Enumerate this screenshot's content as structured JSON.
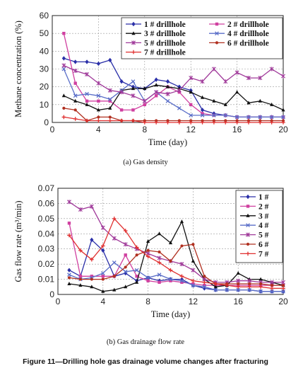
{
  "chart_data": [
    {
      "type": "line",
      "xlabel": "Time (day)",
      "ylabel": "Methane concentration (%)",
      "xlim": [
        0,
        20
      ],
      "ylim": [
        0,
        60
      ],
      "xticks": [
        0,
        4,
        8,
        12,
        16,
        20
      ],
      "yticks": [
        0,
        10,
        20,
        30,
        40,
        50,
        60
      ],
      "grid": "dashed",
      "legend": "top-right",
      "caption": "(a) Gas density",
      "series": [
        {
          "name": "1 # drillhole",
          "color": "#2a2fa8",
          "marker": "diamond",
          "x": [
            1,
            2,
            3,
            4,
            5,
            6,
            7,
            8,
            9,
            10,
            11,
            12,
            13,
            14,
            15,
            16,
            17,
            18,
            19,
            20
          ],
          "y": [
            36,
            34,
            34,
            33,
            35,
            23,
            20,
            19,
            24,
            23,
            20,
            18,
            7,
            5,
            4,
            3,
            3,
            3,
            3,
            3
          ]
        },
        {
          "name": "2 # drillhole",
          "color": "#d040a0",
          "marker": "square",
          "x": [
            1,
            2,
            3,
            4,
            5,
            6,
            7,
            8,
            9,
            10,
            11,
            12,
            13,
            14,
            15,
            16,
            17,
            18,
            19,
            20
          ],
          "y": [
            50,
            22,
            12,
            12,
            12,
            7,
            7,
            10,
            15,
            20,
            17,
            10,
            5,
            4,
            4,
            3,
            3,
            3,
            3,
            3
          ]
        },
        {
          "name": "3 # drillhole",
          "color": "#111111",
          "marker": "triangle",
          "x": [
            1,
            2,
            3,
            4,
            5,
            6,
            7,
            8,
            9,
            10,
            11,
            12,
            13,
            14,
            15,
            16,
            17,
            18,
            19,
            20
          ],
          "y": [
            15,
            12,
            10,
            7,
            8,
            18,
            19,
            19,
            21,
            20,
            19,
            17,
            14,
            12,
            10,
            17,
            11,
            12,
            10,
            7
          ]
        },
        {
          "name": "4 # drillhole",
          "color": "#5a6ec8",
          "marker": "x",
          "x": [
            1,
            2,
            3,
            4,
            5,
            6,
            7,
            8,
            9,
            10,
            11,
            12,
            13,
            14,
            15,
            16,
            17,
            18,
            19,
            20
          ],
          "y": [
            30,
            15,
            16,
            15,
            13,
            18,
            23,
            12,
            17,
            12,
            8,
            4,
            4,
            4,
            4,
            3,
            3,
            3,
            3,
            3
          ]
        },
        {
          "name": "5 # drillhole",
          "color": "#a03a9a",
          "marker": "star",
          "x": [
            1,
            2,
            3,
            4,
            5,
            6,
            7,
            8,
            9,
            10,
            11,
            12,
            13,
            14,
            15,
            16,
            17,
            18,
            19,
            20
          ],
          "y": [
            32,
            29,
            27,
            22,
            18,
            17,
            15,
            12,
            17,
            16,
            18,
            25,
            23,
            30,
            23,
            28,
            25,
            25,
            30,
            26
          ]
        },
        {
          "name": "6 # drillhole",
          "color": "#b03020",
          "marker": "dot",
          "x": [
            1,
            2,
            3,
            4,
            5,
            6,
            7,
            8,
            9,
            10,
            11,
            12,
            13,
            14,
            15,
            16,
            17,
            18,
            19,
            20
          ],
          "y": [
            8,
            7,
            1,
            3,
            3,
            1,
            1,
            1,
            1,
            1,
            1,
            1,
            1,
            1,
            1,
            1,
            1,
            1,
            1,
            1
          ]
        },
        {
          "name": "7 # drillhole",
          "color": "#e03030",
          "marker": "plus",
          "x": [
            1,
            2,
            3,
            4,
            5,
            6,
            7,
            8,
            9,
            10,
            11,
            12,
            13,
            14,
            15,
            16,
            17,
            18,
            19,
            20
          ],
          "y": [
            3,
            2,
            1,
            1,
            1,
            1,
            1,
            0,
            0,
            0,
            0,
            0,
            0,
            0,
            0,
            0,
            0,
            0,
            0,
            0
          ]
        }
      ]
    },
    {
      "type": "line",
      "xlabel": "Time (day)",
      "ylabel": "Gas flow rate (m³/min)",
      "xlim": [
        0,
        20
      ],
      "ylim": [
        0,
        0.07
      ],
      "xticks": [
        0,
        4,
        8,
        12,
        16,
        20
      ],
      "yticks": [
        0,
        0.01,
        0.02,
        0.03,
        0.04,
        0.05,
        0.06,
        0.07
      ],
      "grid": "dashed",
      "legend": "top-right",
      "caption": "(b) Gas drainage flow rate",
      "series": [
        {
          "name": "1 #",
          "color": "#2a2fa8",
          "marker": "diamond",
          "x": [
            1,
            2,
            3,
            4,
            5,
            6,
            7,
            8,
            9,
            10,
            11,
            12,
            13,
            14,
            15,
            16,
            17,
            18,
            19,
            20
          ],
          "y": [
            0.016,
            0.012,
            0.036,
            0.029,
            0.012,
            0.014,
            0.009,
            0.011,
            0.009,
            0.01,
            0.01,
            0.006,
            0.004,
            0.003,
            0.003,
            0.003,
            0.003,
            0.002,
            0.002,
            0.002
          ]
        },
        {
          "name": "2 #",
          "color": "#d040a0",
          "marker": "square",
          "x": [
            1,
            2,
            3,
            4,
            5,
            6,
            7,
            8,
            9,
            10,
            11,
            12,
            13,
            14,
            15,
            16,
            17,
            18,
            19,
            20
          ],
          "y": [
            0.047,
            0.012,
            0.012,
            0.012,
            0.012,
            0.026,
            0.012,
            0.009,
            0.008,
            0.009,
            0.008,
            0.007,
            0.006,
            0.006,
            0.006,
            0.006,
            0.006,
            0.006,
            0.006,
            0.006
          ]
        },
        {
          "name": "3 #",
          "color": "#111111",
          "marker": "triangle",
          "x": [
            1,
            2,
            3,
            4,
            5,
            6,
            7,
            8,
            9,
            10,
            11,
            12,
            13,
            14,
            15,
            16,
            17,
            18,
            19,
            20
          ],
          "y": [
            0.007,
            0.006,
            0.005,
            0.002,
            0.003,
            0.005,
            0.008,
            0.035,
            0.04,
            0.034,
            0.048,
            0.022,
            0.01,
            0.005,
            0.006,
            0.014,
            0.01,
            0.01,
            0.008,
            0.006
          ]
        },
        {
          "name": "4 #",
          "color": "#5a6ec8",
          "marker": "x",
          "x": [
            1,
            2,
            3,
            4,
            5,
            6,
            7,
            8,
            9,
            10,
            11,
            12,
            13,
            14,
            15,
            16,
            17,
            18,
            19,
            20
          ],
          "y": [
            0.013,
            0.01,
            0.011,
            0.014,
            0.021,
            0.015,
            0.016,
            0.011,
            0.013,
            0.01,
            0.009,
            0.006,
            0.005,
            0.003,
            0.003,
            0.003,
            0.003,
            0.002,
            0.002,
            0.002
          ]
        },
        {
          "name": "5 #",
          "color": "#a03a9a",
          "marker": "star",
          "x": [
            1,
            2,
            3,
            4,
            5,
            6,
            7,
            8,
            9,
            10,
            11,
            12,
            13,
            14,
            15,
            16,
            17,
            18,
            19,
            20
          ],
          "y": [
            0.061,
            0.056,
            0.058,
            0.044,
            0.037,
            0.033,
            0.03,
            0.027,
            0.024,
            0.022,
            0.02,
            0.016,
            0.01,
            0.008,
            0.008,
            0.009,
            0.009,
            0.008,
            0.008,
            0.008
          ]
        },
        {
          "name": "6 #",
          "color": "#b03020",
          "marker": "dot",
          "x": [
            1,
            2,
            3,
            4,
            5,
            6,
            7,
            8,
            9,
            10,
            11,
            12,
            13,
            14,
            15,
            16,
            17,
            18,
            19,
            20
          ],
          "y": [
            0.011,
            0.01,
            0.01,
            0.01,
            0.012,
            0.018,
            0.026,
            0.029,
            0.028,
            0.022,
            0.032,
            0.033,
            0.012,
            0.007,
            0.007,
            0.007,
            0.007,
            0.007,
            0.006,
            0.006
          ]
        },
        {
          "name": "7 #",
          "color": "#e03030",
          "marker": "plus",
          "x": [
            1,
            2,
            3,
            4,
            5,
            6,
            7,
            8,
            9,
            10,
            11,
            12,
            13,
            14,
            15,
            16,
            17,
            18,
            19,
            20
          ],
          "y": [
            0.039,
            0.029,
            0.023,
            0.032,
            0.05,
            0.042,
            0.031,
            0.025,
            0.021,
            0.016,
            0.012,
            0.009,
            0.008,
            0.007,
            0.006,
            0.005,
            0.005,
            0.005,
            0.004,
            0.004
          ]
        }
      ]
    }
  ],
  "figure_caption": "Figure 11—Drilling hole gas drainage volume changes after fracturing"
}
